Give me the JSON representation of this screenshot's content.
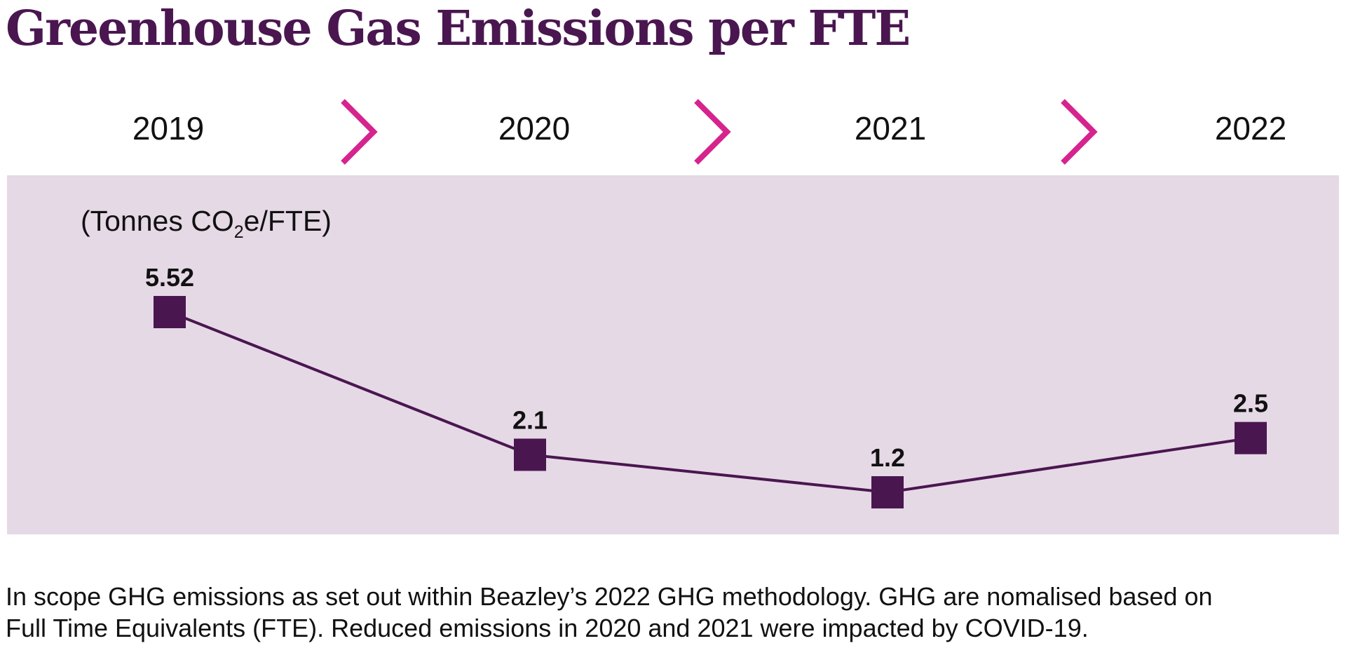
{
  "title": "Greenhouse Gas Emissions per FTE",
  "colors": {
    "title": "#4a1650",
    "chevron": "#d6248e",
    "panel_bg": "#e5d9e6",
    "series": "#4a1650",
    "text": "#111111"
  },
  "unit_label": {
    "before_sub": "(Tonnes CO",
    "sub": "2",
    "after_sub": "e/FTE)"
  },
  "chart_data": {
    "type": "line",
    "categories": [
      "2019",
      "2020",
      "2021",
      "2022"
    ],
    "series": [
      {
        "values": [
          5.52,
          2.1,
          1.2,
          2.5
        ],
        "data_labels": [
          "5.52",
          "2.1",
          "1.2",
          "2.5"
        ],
        "marker": "square"
      }
    ],
    "ylabel": "(Tonnes CO2e/FTE)",
    "axes_shown": false,
    "grid": false
  },
  "footnote": "In scope GHG emissions as set out within Beazley’s 2022 GHG methodology. GHG are nomalised based on\nFull Time Equivalents (FTE). Reduced emissions in 2020 and 2021 were impacted by COVID-19."
}
